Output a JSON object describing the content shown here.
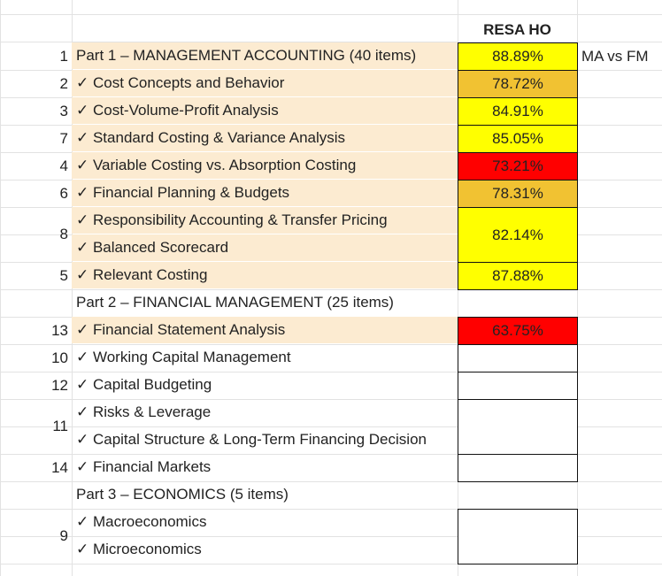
{
  "sheet": {
    "header": "RESA HO",
    "side_note": "MA vs FM",
    "colors": {
      "yellow": "#ffff00",
      "orange": "#f1c232",
      "red": "#ff0000",
      "shade": "#fcebd1",
      "white": "#ffffff"
    },
    "rows": [
      {
        "num": "1",
        "lines": [
          "Part 1 – MANAGEMENT ACCOUNTING (40 items)"
        ],
        "pct": "88.89%",
        "color": "yellow",
        "shade": true
      },
      {
        "num": "2",
        "lines": [
          "✓ Cost Concepts and Behavior"
        ],
        "pct": "78.72%",
        "color": "orange",
        "shade": true
      },
      {
        "num": "3",
        "lines": [
          "✓ Cost-Volume-Profit Analysis"
        ],
        "pct": "84.91%",
        "color": "yellow",
        "shade": true
      },
      {
        "num": "7",
        "lines": [
          "✓ Standard Costing & Variance Analysis"
        ],
        "pct": "85.05%",
        "color": "yellow",
        "shade": true
      },
      {
        "num": "4",
        "lines": [
          "✓ Variable Costing vs. Absorption Costing"
        ],
        "pct": "73.21%",
        "color": "red",
        "shade": true
      },
      {
        "num": "6",
        "lines": [
          "✓ Financial Planning & Budgets"
        ],
        "pct": "78.31%",
        "color": "orange",
        "shade": true
      },
      {
        "num": "8",
        "lines": [
          "✓ Responsibility Accounting & Transfer Pricing",
          "✓ Balanced Scorecard"
        ],
        "pct": "82.14%",
        "color": "yellow",
        "shade": true
      },
      {
        "num": "5",
        "lines": [
          "✓ Relevant Costing"
        ],
        "pct": "87.88%",
        "color": "yellow",
        "shade": true
      },
      {
        "num": "",
        "lines": [
          "Part 2 – FINANCIAL MANAGEMENT (25 items)"
        ],
        "pct": "",
        "color": "none",
        "shade": false
      },
      {
        "num": "13",
        "lines": [
          "✓ Financial Statement Analysis"
        ],
        "pct": "63.75%",
        "color": "red",
        "shade": true
      },
      {
        "num": "10",
        "lines": [
          "✓ Working Capital Management"
        ],
        "pct": "",
        "color": "white",
        "shade": false
      },
      {
        "num": "12",
        "lines": [
          "✓ Capital Budgeting"
        ],
        "pct": "",
        "color": "white",
        "shade": false
      },
      {
        "num": "11",
        "lines": [
          "✓ Risks & Leverage",
          "✓ Capital Structure & Long-Term Financing Decision"
        ],
        "pct": "",
        "color": "white",
        "shade": false
      },
      {
        "num": "14",
        "lines": [
          "✓ Financial Markets"
        ],
        "pct": "",
        "color": "white",
        "shade": false
      },
      {
        "num": "",
        "lines": [
          "Part 3 – ECONOMICS (5 items)"
        ],
        "pct": "",
        "color": "none",
        "shade": false
      },
      {
        "num": "9",
        "lines": [
          "✓ Macroeconomics",
          "✓ Microeconomics"
        ],
        "pct": "",
        "color": "white",
        "shade": false
      }
    ]
  }
}
